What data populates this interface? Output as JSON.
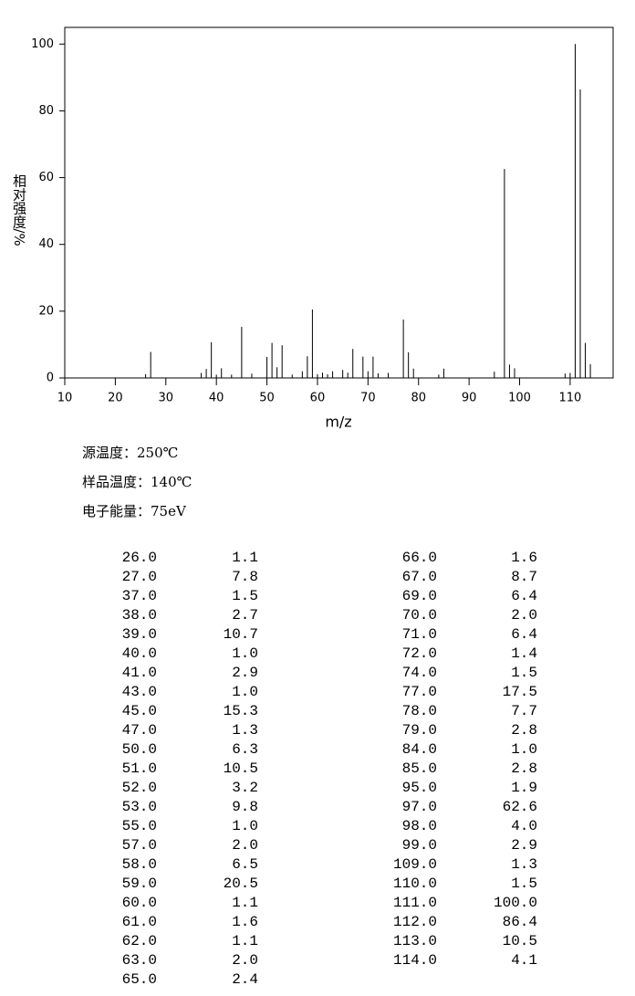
{
  "chart_data": {
    "type": "stem",
    "xlabel": "m/z",
    "ylabel": "相对强度/%",
    "xlim": [
      10,
      118.5
    ],
    "ylim": [
      0,
      105
    ],
    "xticks": [
      10,
      20,
      30,
      40,
      50,
      60,
      70,
      80,
      90,
      100,
      110
    ],
    "yticks": [
      0,
      20,
      40,
      60,
      80,
      100
    ],
    "color": "#000000",
    "x": [
      26,
      27,
      37,
      38,
      39,
      40,
      41,
      43,
      45,
      47,
      50,
      51,
      52,
      53,
      55,
      57,
      58,
      59,
      60,
      61,
      62,
      63,
      65,
      66,
      67,
      69,
      70,
      71,
      72,
      74,
      77,
      78,
      79,
      84,
      85,
      95,
      97,
      98,
      99,
      109,
      110,
      111,
      112,
      113,
      114
    ],
    "x_labels": [
      "26.0",
      "27.0",
      "37.0",
      "38.0",
      "39.0",
      "40.0",
      "41.0",
      "43.0",
      "45.0",
      "47.0",
      "50.0",
      "51.0",
      "52.0",
      "53.0",
      "55.0",
      "57.0",
      "58.0",
      "59.0",
      "60.0",
      "61.0",
      "62.0",
      "63.0",
      "65.0",
      "66.0",
      "67.0",
      "69.0",
      "70.0",
      "71.0",
      "72.0",
      "74.0",
      "77.0",
      "78.0",
      "79.0",
      "84.0",
      "85.0",
      "95.0",
      "97.0",
      "98.0",
      "99.0",
      "109.0",
      "110.0",
      "111.0",
      "112.0",
      "113.0",
      "114.0"
    ],
    "values": [
      1.1,
      7.8,
      1.5,
      2.7,
      10.7,
      1.0,
      2.9,
      1.0,
      15.3,
      1.3,
      6.3,
      10.5,
      3.2,
      9.8,
      1.0,
      2.0,
      6.5,
      20.5,
      1.1,
      1.6,
      1.1,
      2.0,
      2.4,
      1.6,
      8.7,
      6.4,
      2.0,
      6.4,
      1.4,
      1.5,
      17.5,
      7.7,
      2.8,
      1.0,
      2.8,
      1.9,
      62.6,
      4.0,
      2.9,
      1.3,
      1.5,
      100.0,
      86.4,
      10.5,
      4.1
    ],
    "value_labels": [
      "1.1",
      "7.8",
      "1.5",
      "2.7",
      "10.7",
      "1.0",
      "2.9",
      "1.0",
      "15.3",
      "1.3",
      "6.3",
      "10.5",
      "3.2",
      "9.8",
      "1.0",
      "2.0",
      "6.5",
      "20.5",
      "1.1",
      "1.6",
      "1.1",
      "2.0",
      "2.4",
      "1.6",
      "8.7",
      "6.4",
      "2.0",
      "6.4",
      "1.4",
      "1.5",
      "17.5",
      "7.7",
      "2.8",
      "1.0",
      "2.8",
      "1.9",
      "62.6",
      "4.0",
      "2.9",
      "1.3",
      "1.5",
      "100.0",
      "86.4",
      "10.5",
      "4.1"
    ]
  },
  "conditions": [
    "源温度：250℃",
    "样品温度：140℃",
    "电子能量：75eV"
  ]
}
